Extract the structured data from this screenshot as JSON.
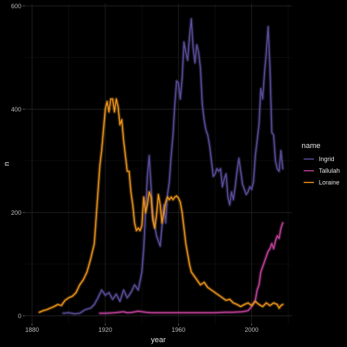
{
  "chart_data": {
    "type": "line",
    "xlabel": "year",
    "ylabel": "n",
    "xlim": [
      1876,
      2022
    ],
    "ylim": [
      -15,
      605
    ],
    "x_ticks": [
      1880,
      1920,
      1960,
      2000
    ],
    "x_minor_ticks": [
      1900,
      1940,
      1980,
      2020
    ],
    "y_ticks": [
      0,
      200,
      400,
      600
    ],
    "y_minor_ticks": [
      100,
      300,
      500
    ],
    "grid": true,
    "legend": {
      "title": "name",
      "placement": "right"
    },
    "series": [
      {
        "name": "Ingrid",
        "color": "#5b4f9e",
        "points": [
          [
            1897,
            5
          ],
          [
            1900,
            6
          ],
          [
            1903,
            4
          ],
          [
            1906,
            5
          ],
          [
            1909,
            12
          ],
          [
            1912,
            15
          ],
          [
            1914,
            22
          ],
          [
            1916,
            35
          ],
          [
            1918,
            50
          ],
          [
            1920,
            40
          ],
          [
            1922,
            45
          ],
          [
            1924,
            32
          ],
          [
            1926,
            42
          ],
          [
            1928,
            28
          ],
          [
            1930,
            50
          ],
          [
            1932,
            35
          ],
          [
            1934,
            45
          ],
          [
            1936,
            60
          ],
          [
            1938,
            50
          ],
          [
            1940,
            85
          ],
          [
            1941,
            130
          ],
          [
            1942,
            200
          ],
          [
            1943,
            270
          ],
          [
            1944,
            310
          ],
          [
            1945,
            250
          ],
          [
            1946,
            195
          ],
          [
            1948,
            155
          ],
          [
            1950,
            135
          ],
          [
            1951,
            175
          ],
          [
            1952,
            215
          ],
          [
            1953,
            180
          ],
          [
            1954,
            235
          ],
          [
            1955,
            260
          ],
          [
            1956,
            310
          ],
          [
            1957,
            350
          ],
          [
            1958,
            410
          ],
          [
            1959,
            455
          ],
          [
            1960,
            450
          ],
          [
            1961,
            420
          ],
          [
            1962,
            460
          ],
          [
            1963,
            530
          ],
          [
            1964,
            510
          ],
          [
            1965,
            495
          ],
          [
            1966,
            540
          ],
          [
            1967,
            575
          ],
          [
            1968,
            520
          ],
          [
            1969,
            490
          ],
          [
            1970,
            525
          ],
          [
            1971,
            510
          ],
          [
            1972,
            480
          ],
          [
            1973,
            410
          ],
          [
            1974,
            380
          ],
          [
            1975,
            360
          ],
          [
            1976,
            350
          ],
          [
            1977,
            330
          ],
          [
            1978,
            300
          ],
          [
            1979,
            270
          ],
          [
            1980,
            275
          ],
          [
            1981,
            285
          ],
          [
            1982,
            280
          ],
          [
            1983,
            285
          ],
          [
            1984,
            250
          ],
          [
            1985,
            265
          ],
          [
            1986,
            275
          ],
          [
            1987,
            230
          ],
          [
            1988,
            215
          ],
          [
            1989,
            240
          ],
          [
            1990,
            225
          ],
          [
            1991,
            250
          ],
          [
            1992,
            280
          ],
          [
            1993,
            305
          ],
          [
            1994,
            280
          ],
          [
            1995,
            255
          ],
          [
            1996,
            245
          ],
          [
            1997,
            235
          ],
          [
            1998,
            240
          ],
          [
            1999,
            250
          ],
          [
            2000,
            245
          ],
          [
            2001,
            260
          ],
          [
            2002,
            310
          ],
          [
            2003,
            340
          ],
          [
            2004,
            370
          ],
          [
            2005,
            440
          ],
          [
            2006,
            420
          ],
          [
            2007,
            470
          ],
          [
            2008,
            510
          ],
          [
            2009,
            560
          ],
          [
            2010,
            480
          ],
          [
            2011,
            355
          ],
          [
            2012,
            350
          ],
          [
            2013,
            300
          ],
          [
            2014,
            285
          ],
          [
            2015,
            280
          ],
          [
            2016,
            320
          ],
          [
            2017,
            285
          ]
        ]
      },
      {
        "name": "Tallulah",
        "color": "#c842a0",
        "points": [
          [
            1917,
            5
          ],
          [
            1920,
            5
          ],
          [
            1925,
            6
          ],
          [
            1930,
            8
          ],
          [
            1932,
            6
          ],
          [
            1935,
            7
          ],
          [
            1938,
            9
          ],
          [
            1940,
            8
          ],
          [
            1942,
            7
          ],
          [
            1945,
            6
          ],
          [
            1950,
            6
          ],
          [
            1955,
            6
          ],
          [
            1960,
            6
          ],
          [
            1965,
            6
          ],
          [
            1970,
            6
          ],
          [
            1975,
            6
          ],
          [
            1980,
            6
          ],
          [
            1985,
            7
          ],
          [
            1990,
            7
          ],
          [
            1995,
            8
          ],
          [
            1998,
            10
          ],
          [
            2000,
            18
          ],
          [
            2002,
            30
          ],
          [
            2003,
            50
          ],
          [
            2004,
            60
          ],
          [
            2005,
            85
          ],
          [
            2006,
            95
          ],
          [
            2007,
            105
          ],
          [
            2008,
            115
          ],
          [
            2009,
            125
          ],
          [
            2010,
            130
          ],
          [
            2011,
            140
          ],
          [
            2012,
            130
          ],
          [
            2013,
            145
          ],
          [
            2014,
            155
          ],
          [
            2015,
            150
          ],
          [
            2016,
            170
          ],
          [
            2017,
            180
          ]
        ]
      },
      {
        "name": "Loraine",
        "color": "#f0961a",
        "points": [
          [
            1884,
            7
          ],
          [
            1886,
            10
          ],
          [
            1888,
            12
          ],
          [
            1890,
            15
          ],
          [
            1892,
            18
          ],
          [
            1894,
            22
          ],
          [
            1896,
            20
          ],
          [
            1898,
            30
          ],
          [
            1900,
            35
          ],
          [
            1902,
            38
          ],
          [
            1904,
            45
          ],
          [
            1906,
            60
          ],
          [
            1908,
            70
          ],
          [
            1910,
            85
          ],
          [
            1912,
            110
          ],
          [
            1914,
            140
          ],
          [
            1915,
            190
          ],
          [
            1916,
            240
          ],
          [
            1917,
            290
          ],
          [
            1918,
            320
          ],
          [
            1919,
            360
          ],
          [
            1920,
            400
          ],
          [
            1921,
            415
          ],
          [
            1922,
            395
          ],
          [
            1923,
            420
          ],
          [
            1924,
            420
          ],
          [
            1925,
            395
          ],
          [
            1926,
            420
          ],
          [
            1927,
            405
          ],
          [
            1928,
            370
          ],
          [
            1929,
            380
          ],
          [
            1930,
            340
          ],
          [
            1931,
            310
          ],
          [
            1932,
            280
          ],
          [
            1933,
            280
          ],
          [
            1934,
            240
          ],
          [
            1935,
            215
          ],
          [
            1936,
            180
          ],
          [
            1937,
            165
          ],
          [
            1938,
            170
          ],
          [
            1939,
            165
          ],
          [
            1940,
            175
          ],
          [
            1941,
            230
          ],
          [
            1942,
            200
          ],
          [
            1943,
            215
          ],
          [
            1944,
            240
          ],
          [
            1945,
            230
          ],
          [
            1946,
            185
          ],
          [
            1947,
            170
          ],
          [
            1948,
            195
          ],
          [
            1949,
            235
          ],
          [
            1950,
            215
          ],
          [
            1951,
            180
          ],
          [
            1952,
            200
          ],
          [
            1953,
            220
          ],
          [
            1954,
            230
          ],
          [
            1955,
            225
          ],
          [
            1956,
            230
          ],
          [
            1957,
            225
          ],
          [
            1958,
            230
          ],
          [
            1959,
            232
          ],
          [
            1960,
            228
          ],
          [
            1961,
            220
          ],
          [
            1962,
            200
          ],
          [
            1963,
            170
          ],
          [
            1964,
            140
          ],
          [
            1965,
            120
          ],
          [
            1966,
            100
          ],
          [
            1967,
            85
          ],
          [
            1968,
            80
          ],
          [
            1970,
            70
          ],
          [
            1972,
            60
          ],
          [
            1974,
            65
          ],
          [
            1976,
            55
          ],
          [
            1978,
            50
          ],
          [
            1980,
            45
          ],
          [
            1982,
            40
          ],
          [
            1984,
            35
          ],
          [
            1986,
            30
          ],
          [
            1988,
            32
          ],
          [
            1990,
            25
          ],
          [
            1992,
            22
          ],
          [
            1994,
            18
          ],
          [
            1996,
            22
          ],
          [
            1998,
            25
          ],
          [
            2000,
            20
          ],
          [
            2002,
            28
          ],
          [
            2004,
            22
          ],
          [
            2006,
            18
          ],
          [
            2008,
            25
          ],
          [
            2010,
            20
          ],
          [
            2012,
            25
          ],
          [
            2014,
            22
          ],
          [
            2015,
            15
          ],
          [
            2016,
            20
          ],
          [
            2017,
            22
          ]
        ]
      }
    ]
  }
}
